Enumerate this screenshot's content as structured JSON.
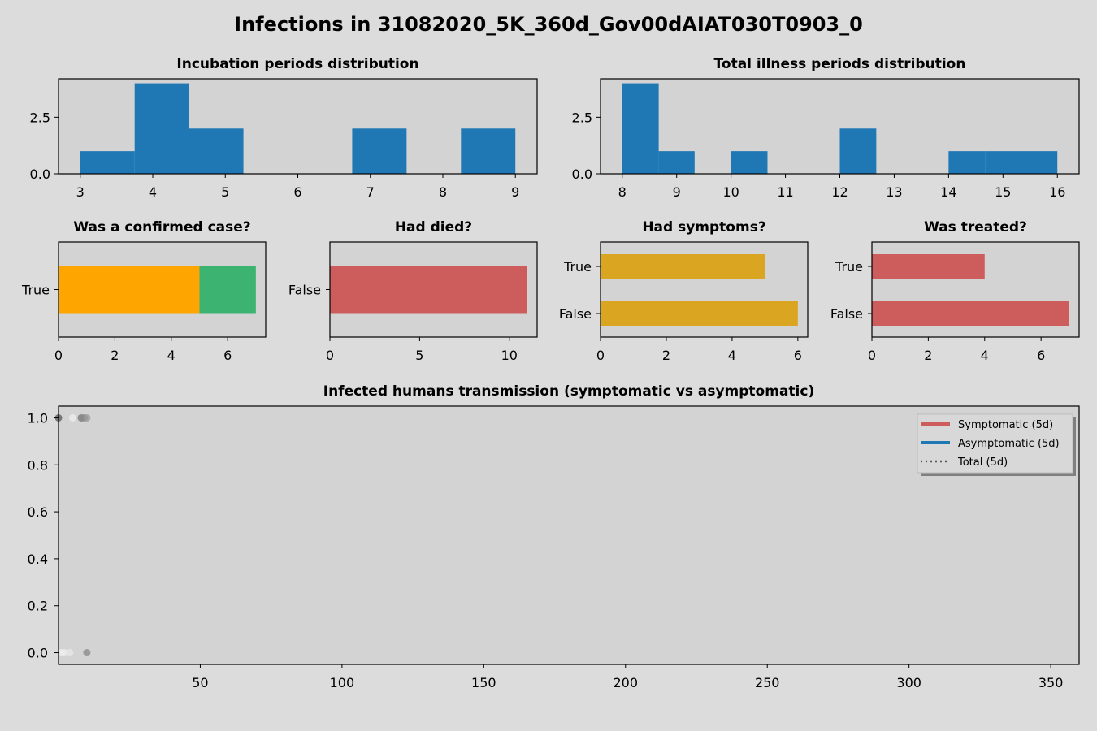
{
  "figure": {
    "title": "Infections in 31082020_5K_360d_Gov00dAIAT030T0903_0",
    "background": "#dcdcdc",
    "axes_background": "#d3d3d3"
  },
  "chart_data": [
    {
      "id": "incubation",
      "type": "bar",
      "title": "Incubation periods distribution",
      "xlim": [
        2.7,
        9.3
      ],
      "ylim": [
        0,
        4.2
      ],
      "xticks": [
        "3",
        "4",
        "5",
        "6",
        "7",
        "8",
        "9"
      ],
      "yticks": [
        "0.0",
        "2.5"
      ],
      "bins": [
        {
          "start": 3.0,
          "end": 3.75,
          "count": 1
        },
        {
          "start": 3.75,
          "end": 4.5,
          "count": 4
        },
        {
          "start": 4.5,
          "end": 5.25,
          "count": 2
        },
        {
          "start": 6.75,
          "end": 7.5,
          "count": 2
        },
        {
          "start": 8.25,
          "end": 9.0,
          "count": 2
        }
      ],
      "color": "#1f77b4"
    },
    {
      "id": "illness",
      "type": "bar",
      "title": "Total illness periods distribution",
      "xlim": [
        7.6,
        16.4
      ],
      "ylim": [
        0,
        4.2
      ],
      "xticks": [
        "8",
        "9",
        "10",
        "11",
        "12",
        "13",
        "14",
        "15",
        "16"
      ],
      "yticks": [
        "0.0",
        "2.5"
      ],
      "bins": [
        {
          "start": 8.0,
          "end": 8.67,
          "count": 4
        },
        {
          "start": 8.67,
          "end": 9.33,
          "count": 1
        },
        {
          "start": 10.0,
          "end": 10.67,
          "count": 1
        },
        {
          "start": 12.0,
          "end": 12.67,
          "count": 2
        },
        {
          "start": 14.0,
          "end": 14.67,
          "count": 1
        },
        {
          "start": 14.67,
          "end": 15.33,
          "count": 1
        },
        {
          "start": 15.33,
          "end": 16.0,
          "count": 1
        }
      ],
      "color": "#1f77b4"
    },
    {
      "id": "confirmed",
      "type": "bar",
      "orientation": "horizontal",
      "stacked": true,
      "title": "Was a confirmed case?",
      "categories": [
        "True"
      ],
      "xlim": [
        0,
        7.35
      ],
      "xticks": [
        "0",
        "2",
        "4",
        "6"
      ],
      "series": [
        {
          "values": [
            5
          ],
          "color": "#ffa500"
        },
        {
          "values": [
            2
          ],
          "color": "#3cb371"
        }
      ]
    },
    {
      "id": "died",
      "type": "bar",
      "orientation": "horizontal",
      "title": "Had died?",
      "categories": [
        "False"
      ],
      "xlim": [
        0,
        11.55
      ],
      "xticks": [
        "0",
        "5",
        "10"
      ],
      "series": [
        {
          "values": [
            11
          ],
          "color": "#cd5c5c"
        }
      ]
    },
    {
      "id": "symptoms",
      "type": "bar",
      "orientation": "horizontal",
      "title": "Had symptoms?",
      "categories": [
        "True",
        "False"
      ],
      "xlim": [
        0,
        6.3
      ],
      "xticks": [
        "0",
        "2",
        "4",
        "6"
      ],
      "series": [
        {
          "values": [
            5,
            6
          ],
          "color": "#daa520"
        }
      ]
    },
    {
      "id": "treated",
      "type": "bar",
      "orientation": "horizontal",
      "title": "Was treated?",
      "categories": [
        "True",
        "False"
      ],
      "xlim": [
        0,
        7.35
      ],
      "xticks": [
        "0",
        "2",
        "4",
        "6"
      ],
      "series": [
        {
          "values": [
            4,
            7
          ],
          "color": "#cd5c5c"
        }
      ]
    },
    {
      "id": "transmission",
      "type": "scatter",
      "title": "Infected humans transmission (symptomatic vs asymptomatic)",
      "xlim": [
        0,
        360
      ],
      "ylim": [
        -0.05,
        1.05
      ],
      "xticks": [
        "50",
        "100",
        "150",
        "200",
        "250",
        "300",
        "350"
      ],
      "yticks": [
        "0.0",
        "0.2",
        "0.4",
        "0.6",
        "0.8",
        "1.0"
      ],
      "points": [
        {
          "x": 0,
          "y": 1.0,
          "color": "#555555"
        },
        {
          "x": 5,
          "y": 1.0,
          "color": "#eeeeee"
        },
        {
          "x": 8,
          "y": 1.0,
          "color": "#777777"
        },
        {
          "x": 9,
          "y": 1.0,
          "color": "#888888"
        },
        {
          "x": 10,
          "y": 1.0,
          "color": "#999999"
        },
        {
          "x": 1,
          "y": 0.0,
          "color": "#eeeeee"
        },
        {
          "x": 2,
          "y": 0.0,
          "color": "#eeeeee"
        },
        {
          "x": 4,
          "y": 0.0,
          "color": "#e8e8e8"
        },
        {
          "x": 10,
          "y": 0.0,
          "color": "#888888"
        }
      ],
      "legend": {
        "placement": "top-right",
        "entries": [
          {
            "label": "Symptomatic (5d)",
            "color": "#cd5c5c",
            "style": "solid"
          },
          {
            "label": "Asymptomatic (5d)",
            "color": "#1f77b4",
            "style": "solid"
          },
          {
            "label": "Total (5d)",
            "color": "#555555",
            "style": "dotted"
          }
        ]
      }
    }
  ]
}
